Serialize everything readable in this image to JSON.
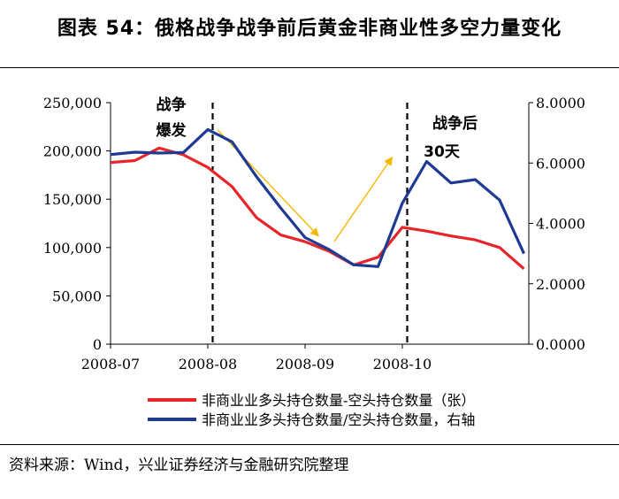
{
  "figure": {
    "title": "图表 54：俄格战争战争前后黄金非商业性多空力量变化",
    "source": "资料来源：Wind，兴业证券经济与金融研究院整理"
  },
  "chart_data": {
    "type": "line",
    "title": "图表 54：俄格战争战争前后黄金非商业性多空力量变化",
    "x_tick_labels": [
      "2008-07",
      "2008-08",
      "2008-09",
      "2008-10"
    ],
    "y_left": {
      "range": [
        0,
        250000
      ],
      "ticks": [
        "0",
        "50,000",
        "100,000",
        "150,000",
        "200,000",
        "250,000"
      ]
    },
    "y_right": {
      "range": [
        0,
        8
      ],
      "ticks": [
        "0.0000",
        "2.0000",
        "4.0000",
        "6.0000",
        "8.0000"
      ]
    },
    "x_domain": [
      0,
      4.3
    ],
    "series": [
      {
        "name": "非商业业多头持仓数量-空头持仓数量（张）",
        "axis": "left",
        "color": "#e8262a",
        "x": [
          0,
          0.25,
          0.5,
          0.75,
          1.0,
          1.25,
          1.5,
          1.75,
          2.0,
          2.25,
          2.5,
          2.75,
          3.0,
          3.25,
          3.5,
          3.75,
          4.0,
          4.25
        ],
        "y": [
          188000,
          190000,
          203000,
          196000,
          183000,
          163000,
          131000,
          113000,
          106000,
          96000,
          82000,
          90000,
          121000,
          117000,
          112000,
          108000,
          100000,
          78000
        ]
      },
      {
        "name": "非商业业多头持仓数量/空头持仓数量，右轴",
        "axis": "right",
        "color": "#1f3a93",
        "x": [
          0,
          0.25,
          0.5,
          0.75,
          1.0,
          1.25,
          1.5,
          1.75,
          2.0,
          2.25,
          2.5,
          2.75,
          3.0,
          3.25,
          3.5,
          3.75,
          4.0,
          4.25
        ],
        "y": [
          6.28,
          6.36,
          6.33,
          6.35,
          7.11,
          6.7,
          5.55,
          4.51,
          3.53,
          3.13,
          2.63,
          2.57,
          4.67,
          6.05,
          5.34,
          5.45,
          4.77,
          3.0
        ]
      }
    ],
    "event_lines": [
      {
        "x": 1.05,
        "label": [
          "战争",
          "爆发"
        ]
      },
      {
        "x": 3.05,
        "label": [
          "战争后",
          "30天"
        ]
      }
    ],
    "arrows": [
      {
        "from": [
          1.1,
          7.1
        ],
        "to": [
          2.12,
          3.64
        ]
      },
      {
        "from": [
          2.3,
          3.4
        ],
        "to": [
          2.88,
          6.12
        ]
      }
    ],
    "arrow_color": "#f5b800",
    "legend": {
      "position": "bottom"
    }
  }
}
